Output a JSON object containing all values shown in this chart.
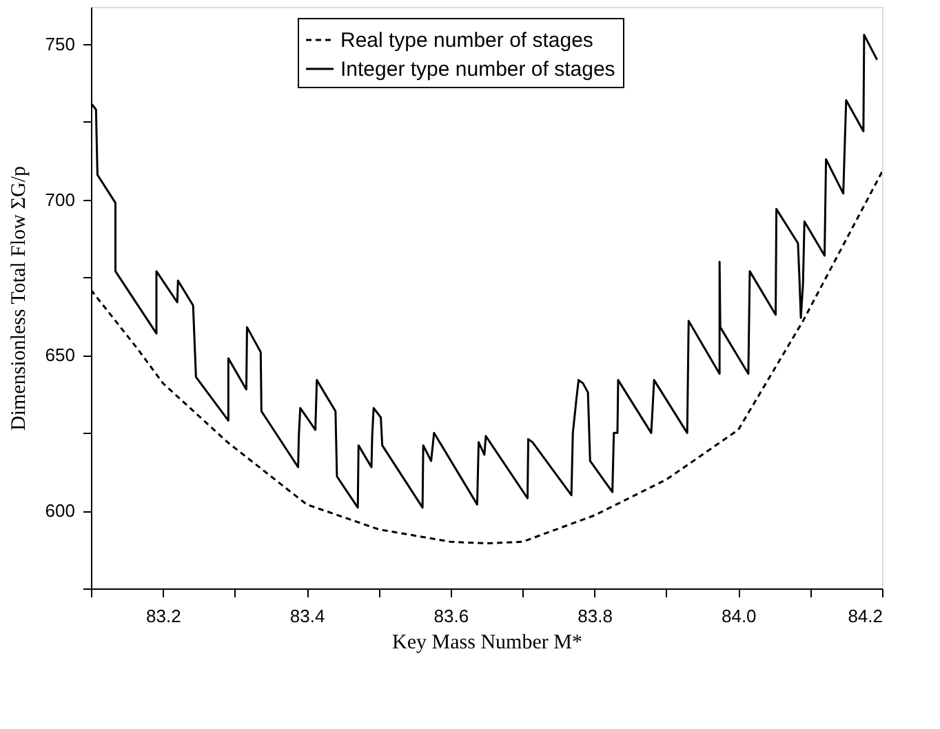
{
  "chart_data": {
    "type": "line",
    "xlabel": "Key Mass Number M*",
    "ylabel": "Dimensionless Total Flow ΣG/p",
    "xlim": [
      83.1,
      84.2
    ],
    "ylim": [
      575,
      762
    ],
    "xticks": [
      {
        "value": 83.1,
        "label": null
      },
      83.2,
      {
        "value": 83.3,
        "label": null
      },
      83.4,
      {
        "value": 83.5,
        "label": null
      },
      83.6,
      {
        "value": 83.7,
        "label": null
      },
      83.8,
      {
        "value": 83.9,
        "label": null
      },
      {
        "value": 84.0,
        "label": "84.0"
      },
      {
        "value": 84.1,
        "label": null
      },
      84.2
    ],
    "yticks": [
      {
        "value": 575,
        "label": null
      },
      600,
      {
        "value": 625,
        "label": null
      },
      650,
      {
        "value": 675,
        "label": null
      },
      700,
      {
        "value": 725,
        "label": null
      },
      750
    ],
    "grid": false,
    "legend": "top",
    "marker": "none",
    "series": [
      {
        "name": "Real type number of stages",
        "color": "#000000",
        "line_style": "dashed",
        "x": [
          83.1,
          83.165,
          83.2,
          83.29,
          83.4,
          83.5,
          83.6,
          83.65,
          83.7,
          83.8,
          83.9,
          84.0,
          84.09,
          84.2
        ],
        "values": [
          671,
          652,
          641,
          622,
          602,
          594,
          590,
          589.5,
          590,
          598.5,
          610,
          626,
          661,
          709
        ]
      },
      {
        "name": "Integer type number of stages",
        "color": "#000000",
        "line_style": "solid",
        "x": [
          83.1,
          83.107,
          83.109,
          83.134,
          83.134,
          83.191,
          83.191,
          83.22,
          83.221,
          83.242,
          83.246,
          83.291,
          83.291,
          83.316,
          83.317,
          83.336,
          83.337,
          83.388,
          83.389,
          83.391,
          83.412,
          83.414,
          83.44,
          83.442,
          83.471,
          83.472,
          83.49,
          83.491,
          83.493,
          83.503,
          83.505,
          83.561,
          83.562,
          83.573,
          83.577,
          83.637,
          83.639,
          83.647,
          83.649,
          83.707,
          83.708,
          83.714,
          83.768,
          83.77,
          83.775,
          83.778,
          83.784,
          83.791,
          83.794,
          83.825,
          83.827,
          83.832,
          83.833,
          83.879,
          83.883,
          83.929,
          83.931,
          83.974,
          83.974,
          83.975,
          84.014,
          84.016,
          84.052,
          84.053,
          84.083,
          84.085,
          84.087,
          84.09,
          84.092,
          84.12,
          84.122,
          84.146,
          84.148,
          84.15,
          84.174,
          84.175,
          84.193
        ],
        "values": [
          731,
          729,
          708,
          699,
          677,
          657,
          677,
          667,
          674,
          666,
          643,
          629,
          649,
          639,
          659,
          651,
          632,
          614,
          624,
          633,
          626,
          642,
          632,
          611,
          601,
          621,
          614,
          624,
          633,
          630,
          621,
          601,
          621,
          616,
          625,
          602,
          622,
          618,
          624,
          604,
          623,
          622,
          605,
          625,
          636,
          642,
          641,
          638,
          616,
          606,
          625,
          625,
          642,
          625,
          642,
          625,
          661,
          644,
          680,
          659,
          644,
          677,
          663,
          697,
          686,
          675,
          662,
          673,
          693,
          682,
          713,
          702,
          717,
          732,
          722,
          753,
          745
        ]
      }
    ]
  }
}
